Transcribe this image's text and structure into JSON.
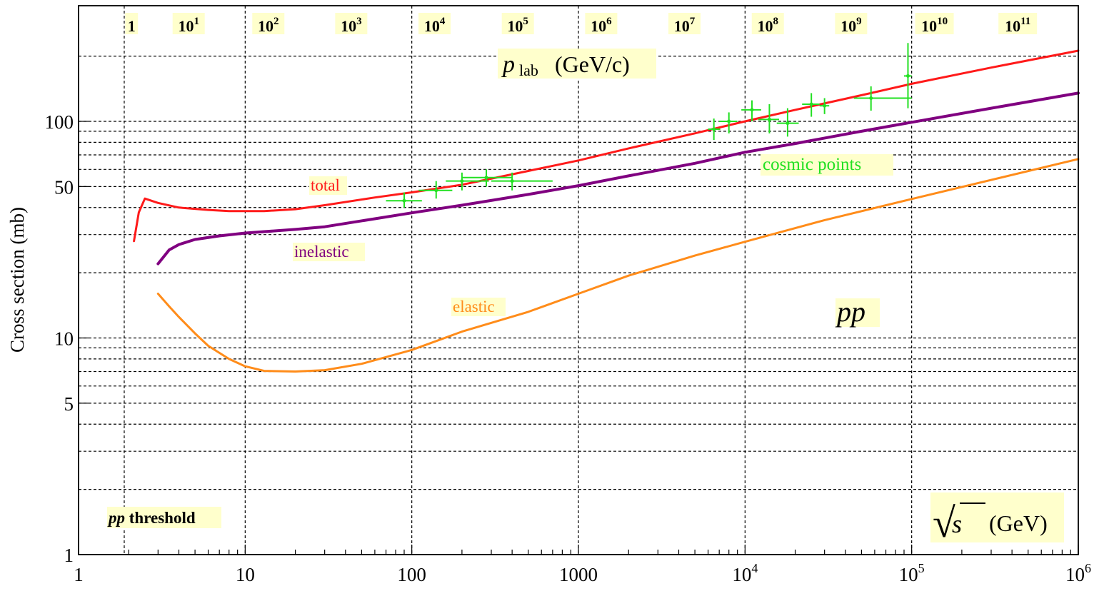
{
  "chart_data": {
    "type": "line",
    "title": "",
    "xlabel": "√s (GeV)",
    "ylabel": "Cross section (mb)",
    "x_scale": "log",
    "y_scale": "log",
    "xlim": [
      1,
      1000000
    ],
    "ylim": [
      1,
      300
    ],
    "x_ticks": [
      {
        "value": 1,
        "label": "1"
      },
      {
        "value": 10,
        "label": "10"
      },
      {
        "value": 100,
        "label": "100"
      },
      {
        "value": 1000,
        "label": "1000"
      },
      {
        "value": 10000,
        "label": "10",
        "exp": "4"
      },
      {
        "value": 100000,
        "label": "10",
        "exp": "5"
      },
      {
        "value": 1000000,
        "label": "10",
        "exp": "6"
      }
    ],
    "y_ticks": [
      {
        "value": 1,
        "label": "1"
      },
      {
        "value": 5,
        "label": "5"
      },
      {
        "value": 10,
        "label": "10"
      },
      {
        "value": 50,
        "label": "50"
      },
      {
        "value": 100,
        "label": "100"
      }
    ],
    "y_grid": [
      2,
      3,
      4,
      6,
      7,
      8,
      9,
      20,
      30,
      40,
      60,
      70,
      80,
      90,
      200
    ],
    "x_grid": [
      1.88,
      10,
      100,
      1000,
      10000,
      100000
    ],
    "top_axis": {
      "label_main": "p",
      "label_sub": "lab",
      "label_unit": " (GeV/c)",
      "ticks": [
        {
          "sqrt_s": 2.08,
          "base": "1",
          "exp": ""
        },
        {
          "sqrt_s": 4.58,
          "base": "10",
          "exp": "1"
        },
        {
          "sqrt_s": 13.77,
          "base": "10",
          "exp": "2"
        },
        {
          "sqrt_s": 43.3,
          "base": "10",
          "exp": "3"
        },
        {
          "sqrt_s": 137,
          "base": "10",
          "exp": "4"
        },
        {
          "sqrt_s": 433,
          "base": "10",
          "exp": "5"
        },
        {
          "sqrt_s": 1370,
          "base": "10",
          "exp": "6"
        },
        {
          "sqrt_s": 4330,
          "base": "10",
          "exp": "7"
        },
        {
          "sqrt_s": 13700,
          "base": "10",
          "exp": "8"
        },
        {
          "sqrt_s": 43300,
          "base": "10",
          "exp": "9"
        },
        {
          "sqrt_s": 137000,
          "base": "10",
          "exp": "10"
        },
        {
          "sqrt_s": 433000,
          "base": "10",
          "exp": "11"
        }
      ],
      "grid_sqrt_s": [
        1.88,
        10,
        100,
        1000,
        10000,
        100000
      ]
    },
    "series": [
      {
        "name": "total",
        "color": "#ff1a1a",
        "x": [
          2.15,
          2.3,
          2.5,
          3,
          4,
          6,
          8,
          10,
          13,
          20,
          30,
          60,
          100,
          200,
          500,
          1000,
          2000,
          5000,
          10000,
          20000,
          50000,
          100000,
          300000,
          1000000
        ],
        "y": [
          28,
          38,
          44,
          42,
          40,
          39,
          38.5,
          38.5,
          38.5,
          39.3,
          41,
          44.5,
          47,
          51,
          59,
          66,
          75,
          88,
          100,
          113,
          132,
          149,
          177,
          212
        ]
      },
      {
        "name": "inelastic",
        "color": "#800080",
        "x": [
          3,
          3.5,
          4,
          5,
          7,
          10,
          20,
          30,
          60,
          100,
          200,
          500,
          1000,
          2000,
          5000,
          10000,
          20000,
          50000,
          100000,
          300000,
          1000000
        ],
        "y": [
          22,
          25.5,
          27,
          28.5,
          29.6,
          30.5,
          31.7,
          32.6,
          35.5,
          37.8,
          41,
          46,
          50.5,
          56,
          64,
          72,
          79,
          90,
          99,
          115,
          135
        ]
      },
      {
        "name": "elastic",
        "color": "#ff8c1a",
        "x": [
          3,
          3.5,
          4,
          5,
          6,
          8,
          10,
          13,
          20,
          30,
          50,
          100,
          200,
          500,
          1000,
          2000,
          5000,
          10000,
          30000,
          100000,
          1000000
        ],
        "y": [
          16,
          14,
          12.5,
          10.5,
          9.2,
          8,
          7.4,
          7.05,
          7.0,
          7.1,
          7.6,
          8.8,
          10.7,
          13.2,
          16,
          19.4,
          24,
          27.8,
          35,
          43.8,
          67
        ]
      },
      {
        "name": "cosmic points",
        "color": "#22e022",
        "points": [
          {
            "x": 90,
            "y": 43,
            "xerr": [
              70,
              115
            ],
            "yerr": [
              40,
              47
            ]
          },
          {
            "x": 140,
            "y": 48,
            "xerr": [
              110,
              175
            ],
            "yerr": [
              44,
              53
            ]
          },
          {
            "x": 200,
            "y": 53,
            "xerr": [
              160,
              290
            ],
            "yerr": [
              48,
              58
            ]
          },
          {
            "x": 280,
            "y": 55,
            "xerr": [
              200,
              400
            ],
            "yerr": [
              50,
              60
            ]
          },
          {
            "x": 400,
            "y": 53,
            "xerr": [
              300,
              700
            ],
            "yerr": [
              48,
              58
            ]
          },
          {
            "x": 6500,
            "y": 92,
            "xerr": [
              6000,
              7100
            ],
            "yerr": [
              82,
              103
            ]
          },
          {
            "x": 8000,
            "y": 100,
            "xerr": [
              7000,
              9000
            ],
            "yerr": [
              88,
              110
            ]
          },
          {
            "x": 11000,
            "y": 113,
            "xerr": [
              9500,
              12500
            ],
            "yerr": [
              100,
              125
            ]
          },
          {
            "x": 14000,
            "y": 102,
            "xerr": [
              12000,
              16000
            ],
            "yerr": [
              88,
              120
            ]
          },
          {
            "x": 18000,
            "y": 98,
            "xerr": [
              15500,
              21000
            ],
            "yerr": [
              85,
              115
            ]
          },
          {
            "x": 25000,
            "y": 120,
            "xerr": [
              22000,
              28000
            ],
            "yerr": [
              105,
              135
            ]
          },
          {
            "x": 30000,
            "y": 118,
            "xerr": [
              28000,
              32000
            ],
            "yerr": [
              108,
              128
            ]
          },
          {
            "x": 57000,
            "y": 128,
            "xerr": [
              45000,
              100000
            ],
            "yerr": [
              112,
              145
            ]
          },
          {
            "x": 95000,
            "y": 162,
            "xerr": [
              90000,
              100000
            ],
            "yerr": [
              115,
              230
            ]
          }
        ]
      }
    ],
    "annotations": {
      "total": "total",
      "inelastic": "inelastic",
      "elastic": "elastic",
      "cosmic": "cosmic points",
      "pp": "pp",
      "threshold_bold": "pp",
      "threshold_rest": " threshold",
      "sqrt_symbol": "√",
      "sqrt_var": "s",
      "sqrt_unit": "(GeV)"
    },
    "grid": true
  }
}
